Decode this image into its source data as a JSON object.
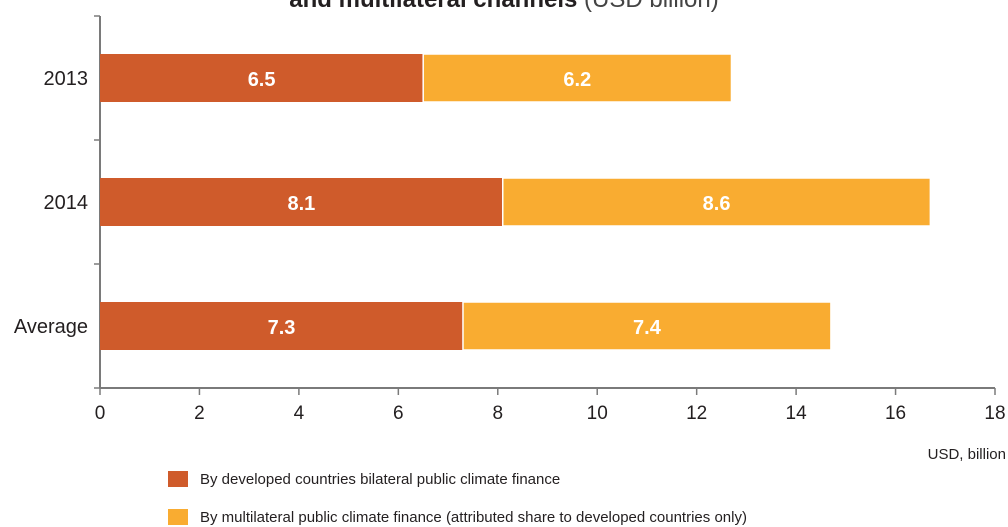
{
  "title": {
    "bold_part": "and multilateral channels",
    "light_part": "(USD billion)"
  },
  "colors": {
    "bilateral": "#cf5b2b",
    "multilateral": "#f9ac31",
    "axis": "#7a7a7a"
  },
  "unit_label": "USD, billion",
  "chart_data": {
    "type": "bar",
    "orientation": "horizontal",
    "stacked": true,
    "categories": [
      "2013",
      "2014",
      "Average"
    ],
    "series": [
      {
        "name": "By developed countries bilateral public climate finance",
        "values": [
          6.5,
          8.1,
          7.3
        ]
      },
      {
        "name": "By multilateral public climate finance (attributed share to developed countries only)",
        "values": [
          6.2,
          8.6,
          7.4
        ]
      }
    ],
    "xlim": [
      0,
      18
    ],
    "xticks": [
      0,
      2,
      4,
      6,
      8,
      10,
      12,
      14,
      16,
      18
    ],
    "grid": false,
    "legend_position": "bottom"
  }
}
